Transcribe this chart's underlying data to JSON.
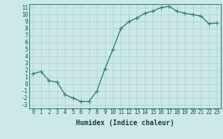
{
  "x": [
    0,
    1,
    2,
    3,
    4,
    5,
    6,
    7,
    8,
    9,
    10,
    11,
    12,
    13,
    14,
    15,
    16,
    17,
    18,
    19,
    20,
    21,
    22,
    23
  ],
  "y": [
    1.5,
    1.8,
    0.5,
    0.3,
    -1.5,
    -2.0,
    -2.5,
    -2.5,
    -1.0,
    2.2,
    5.0,
    8.0,
    9.0,
    9.5,
    10.2,
    10.5,
    11.0,
    11.2,
    10.5,
    10.2,
    10.0,
    9.8,
    8.7,
    8.8
  ],
  "line_color": "#2e7d70",
  "bg_color": "#cce8e8",
  "grid_color": "#aacfcf",
  "xlabel": "Humidex (Indice chaleur)",
  "ylim": [
    -3.5,
    11.5
  ],
  "xlim": [
    -0.5,
    23.5
  ],
  "yticks": [
    -3,
    -2,
    -1,
    0,
    1,
    2,
    3,
    4,
    5,
    6,
    7,
    8,
    9,
    10,
    11
  ],
  "xticks": [
    0,
    1,
    2,
    3,
    4,
    5,
    6,
    7,
    8,
    9,
    10,
    11,
    12,
    13,
    14,
    15,
    16,
    17,
    18,
    19,
    20,
    21,
    22,
    23
  ],
  "marker": "+",
  "markersize": 4,
  "linewidth": 1.0,
  "xlabel_fontsize": 7,
  "tick_fontsize": 5.5,
  "tick_color": "#1a4a4a",
  "label_color": "#1a3a3a",
  "spine_color": "#2e7d70"
}
